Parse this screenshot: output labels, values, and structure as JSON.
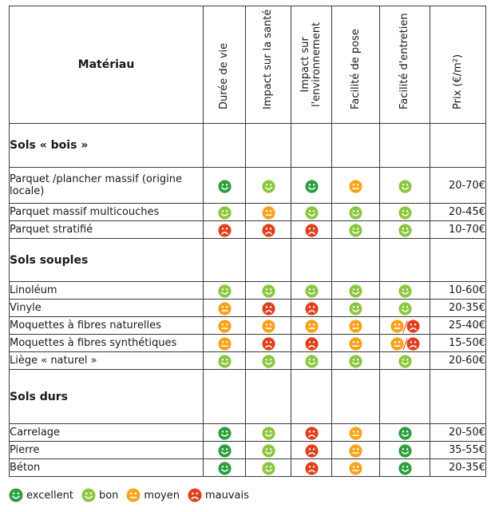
{
  "header": {
    "material": "Matériau",
    "columns": [
      "Durée de vie",
      "Impact sur la santé",
      "Impact sur l'environnement",
      "Facilité de pose",
      "Facilité d'entretien",
      "Prix (€/m²)"
    ]
  },
  "sections": [
    {
      "title": "Sols « bois »",
      "rows": [
        {
          "name": "Parquet /plancher massif (origine locale)",
          "ratings": [
            [
              "excellent"
            ],
            [
              "bon"
            ],
            [
              "excellent"
            ],
            [
              "moyen"
            ],
            [
              "bon"
            ]
          ],
          "price": "20-70€"
        },
        {
          "name": "Parquet massif multicouches",
          "ratings": [
            [
              "bon"
            ],
            [
              "moyen"
            ],
            [
              "bon"
            ],
            [
              "bon"
            ],
            [
              "bon"
            ]
          ],
          "price": "20-45€"
        },
        {
          "name": "Parquet stratifié",
          "ratings": [
            [
              "mauvais"
            ],
            [
              "mauvais"
            ],
            [
              "mauvais"
            ],
            [
              "bon"
            ],
            [
              "bon"
            ]
          ],
          "price": "10-70€"
        }
      ]
    },
    {
      "title": "Sols souples",
      "rows": [
        {
          "name": "Linoléum",
          "ratings": [
            [
              "bon"
            ],
            [
              "bon"
            ],
            [
              "bon"
            ],
            [
              "bon"
            ],
            [
              "bon"
            ]
          ],
          "price": "10-60€"
        },
        {
          "name": "Vinyle",
          "ratings": [
            [
              "moyen"
            ],
            [
              "mauvais"
            ],
            [
              "mauvais"
            ],
            [
              "bon"
            ],
            [
              "bon"
            ]
          ],
          "price": "20-35€"
        },
        {
          "name": "Moquettes à fibres naturelles",
          "ratings": [
            [
              "moyen"
            ],
            [
              "moyen"
            ],
            [
              "moyen"
            ],
            [
              "moyen"
            ],
            [
              "moyen",
              "mauvais"
            ]
          ],
          "price": "25-40€"
        },
        {
          "name": "Moquettes à fibres synthétiques",
          "ratings": [
            [
              "moyen"
            ],
            [
              "mauvais"
            ],
            [
              "mauvais"
            ],
            [
              "moyen"
            ],
            [
              "moyen",
              "mauvais"
            ]
          ],
          "price": "15-50€"
        },
        {
          "name": "Liège « naturel »",
          "ratings": [
            [
              "bon"
            ],
            [
              "bon"
            ],
            [
              "bon"
            ],
            [
              "bon"
            ],
            [
              "bon"
            ]
          ],
          "price": "20-60€"
        }
      ]
    },
    {
      "title": "Sols durs",
      "rows": [
        {
          "name": "Carrelage",
          "ratings": [
            [
              "excellent"
            ],
            [
              "bon"
            ],
            [
              "mauvais"
            ],
            [
              "moyen"
            ],
            [
              "excellent"
            ]
          ],
          "price": "20-50€"
        },
        {
          "name": "Pierre",
          "ratings": [
            [
              "excellent"
            ],
            [
              "bon"
            ],
            [
              "mauvais"
            ],
            [
              "moyen"
            ],
            [
              "excellent"
            ]
          ],
          "price": "35-55€"
        },
        {
          "name": "Béton",
          "ratings": [
            [
              "excellent"
            ],
            [
              "bon"
            ],
            [
              "mauvais"
            ],
            [
              "moyen"
            ],
            [
              "excellent"
            ]
          ],
          "price": "20-35€"
        }
      ]
    }
  ],
  "legend": [
    {
      "key": "excellent",
      "label": "excellent"
    },
    {
      "key": "bon",
      "label": "bon"
    },
    {
      "key": "moyen",
      "label": "moyen"
    },
    {
      "key": "mauvais",
      "label": "mauvais"
    }
  ],
  "colors": {
    "excellent": "#2e9e3e",
    "bon": "#8cc63f",
    "moyen": "#f7a31c",
    "mauvais": "#e0401e"
  }
}
